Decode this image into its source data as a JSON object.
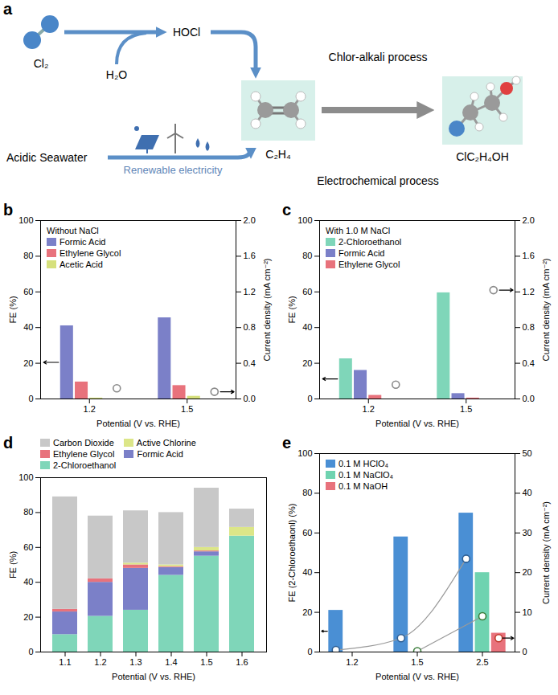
{
  "diagram": {
    "panel": "a",
    "chlorine": "Cl₂",
    "water": "H₂O",
    "hypochlorous_acid": "HOCl",
    "top_route": "Chlor-alkali process",
    "ethylene": "C₂H₄",
    "product": "ClC₂H₄OH",
    "feed": "Acidic Seawater",
    "power": "Renewable electricity",
    "bottom_route": "Electrochemical process"
  },
  "chart_data": [
    {
      "panel": "b",
      "type": "bar",
      "legend_title": "Without NaCl",
      "legend": "top-left",
      "x_label": "Potential (V vs. RHE)",
      "y_label": "FE (%)",
      "y2_label": "Current density (mA cm⁻²)",
      "categories": [
        "1.2",
        "1.5"
      ],
      "ylim": [
        0,
        100
      ],
      "yticks": [
        0,
        20,
        40,
        60,
        80,
        100
      ],
      "y2lim": [
        0,
        2
      ],
      "y2ticks": [
        {
          "value": 0,
          "label": "0.0"
        },
        0.4,
        0.8,
        1.2,
        1.6,
        {
          "value": 2,
          "label": "2.0"
        }
      ],
      "series": [
        {
          "name": "Formic Acid",
          "color": "#7b80c8",
          "values": [
            41,
            45.5
          ]
        },
        {
          "name": "Ethylene Glycol",
          "color": "#e8727c",
          "values": [
            9.5,
            7.5
          ]
        },
        {
          "name": "Acetic Acid",
          "color": "#d6e07c",
          "values": [
            0.5,
            1.5
          ]
        },
        {
          "type": "scatter",
          "axis": "y2",
          "marker": "circle",
          "color": "#8a8a8a",
          "values": [
            0.12,
            0.08
          ]
        }
      ]
    },
    {
      "panel": "c",
      "type": "bar",
      "legend_title": "With 1.0 M NaCl",
      "legend": "top-left",
      "x_label": "Potential (V vs. RHE)",
      "y_label": "FE (%)",
      "y2_label": "Current density (mA cm⁻²)",
      "categories": [
        "1.2",
        "1.5"
      ],
      "ylim": [
        0,
        100
      ],
      "yticks": [
        0,
        20,
        40,
        60,
        80,
        100
      ],
      "y2lim": [
        0,
        2
      ],
      "y2ticks": [
        {
          "value": 0,
          "label": "0.0"
        },
        0.4,
        0.8,
        1.2,
        1.6,
        {
          "value": 2,
          "label": "2.0"
        }
      ],
      "series": [
        {
          "name": "2-Chloroethanol",
          "color": "#7fd6b9",
          "values": [
            22.5,
            59.5
          ]
        },
        {
          "name": "Formic Acid",
          "color": "#7b80c8",
          "values": [
            16,
            3
          ]
        },
        {
          "name": "Ethylene Glycol",
          "color": "#e8727c",
          "values": [
            2,
            0.5
          ]
        },
        {
          "type": "scatter",
          "axis": "y2",
          "marker": "circle",
          "color": "#8a8a8a",
          "values": [
            0.16,
            1.22
          ]
        }
      ]
    },
    {
      "panel": "d",
      "type": "bar",
      "stacked": true,
      "legend": "top",
      "x_label": "Potential (V vs. RHE)",
      "y_label": "FE (%)",
      "categories": [
        "1.1",
        "1.2",
        "1.3",
        "1.4",
        "1.5",
        "1.6"
      ],
      "ylim": [
        0,
        100
      ],
      "yticks": [
        0,
        20,
        40,
        60,
        80,
        100
      ],
      "series": [
        {
          "name": "2-Chloroethanol",
          "color": "#7fd6b9",
          "values": [
            10,
            20.5,
            24,
            44,
            55,
            66.5
          ]
        },
        {
          "name": "Formic Acid",
          "color": "#7b80c8",
          "values": [
            13,
            19.5,
            24,
            4.5,
            2.5,
            0
          ]
        },
        {
          "name": "Ethylene Glycol",
          "color": "#e8727c",
          "values": [
            1.5,
            2,
            2,
            0.5,
            0.5,
            0
          ]
        },
        {
          "name": "Active Chlorine",
          "color": "#dce688",
          "values": [
            0,
            0,
            1,
            1,
            2,
            5
          ]
        },
        {
          "name": "Carbon Dioxide",
          "color": "#c8c8c8",
          "values": [
            64.5,
            36,
            30,
            30,
            34,
            10.5
          ]
        }
      ]
    },
    {
      "panel": "e",
      "type": "bar",
      "legend": "top-left",
      "x_label": "Potential (V vs. RHE)",
      "y_label": "FE (2-Chloroethaonl) (%)",
      "y2_label": "Current density (mA cm⁻²)",
      "categories": [
        "1.2",
        "1.5",
        "2.5"
      ],
      "ylim": [
        0,
        100
      ],
      "yticks": [
        0,
        20,
        40,
        60,
        80,
        100
      ],
      "y2lim": [
        0,
        50
      ],
      "y2ticks": [
        0,
        10,
        20,
        30,
        40,
        50
      ],
      "series": [
        {
          "name": "0.1 M HClO₄",
          "color": "#4a8fd4",
          "values": [
            21,
            58,
            70
          ]
        },
        {
          "name": "0.1 M NaClO₄",
          "color": "#6fd3b0",
          "values": [
            null,
            0,
            40
          ]
        },
        {
          "name": "0.1 M NaOH",
          "color": "#e8727c",
          "values": [
            null,
            null,
            9.5
          ]
        },
        {
          "type": "line",
          "axis": "y2",
          "marker": "circle",
          "color": "#2e5f94",
          "values": [
            0.5,
            3.5,
            23.5
          ]
        },
        {
          "type": "line",
          "axis": "y2",
          "marker": "circle",
          "color": "#3b7d3b",
          "values": [
            null,
            0.2,
            9
          ]
        },
        {
          "type": "scatter",
          "axis": "y2",
          "marker": "circle",
          "color": "#c0392b",
          "values": [
            null,
            null,
            3.5
          ]
        }
      ]
    }
  ]
}
